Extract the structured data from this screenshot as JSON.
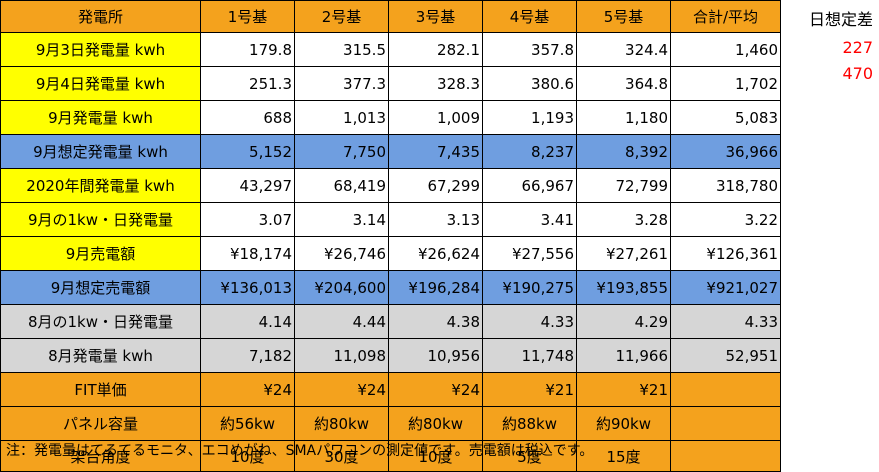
{
  "colors": {
    "orange": "#f4a21d",
    "yellow": "#ffff00",
    "blue": "#6f9ee0",
    "gray": "#d6d6d6",
    "white": "#ffffff",
    "red": "#ff0000"
  },
  "header": [
    "発電所",
    "1号基",
    "2号基",
    "3号基",
    "4号基",
    "5号基",
    "合計/平均"
  ],
  "rows": [
    {
      "label": "9月3日発電量 kwh",
      "bg": "yellow",
      "bodyBg": "white",
      "align": "num",
      "values": [
        "179.8",
        "315.5",
        "282.1",
        "357.8",
        "324.4",
        "1,460"
      ]
    },
    {
      "label": "9月4日発電量 kwh",
      "bg": "yellow",
      "bodyBg": "white",
      "align": "num",
      "values": [
        "251.3",
        "377.3",
        "328.3",
        "380.6",
        "364.8",
        "1,702"
      ]
    },
    {
      "label": "9月発電量 kwh",
      "bg": "yellow",
      "bodyBg": "white",
      "align": "num",
      "values": [
        "688",
        "1,013",
        "1,009",
        "1,193",
        "1,180",
        "5,083"
      ]
    },
    {
      "label": "9月想定発電量 kwh",
      "bg": "blue",
      "bodyBg": "blue",
      "align": "num",
      "values": [
        "5,152",
        "7,750",
        "7,435",
        "8,237",
        "8,392",
        "36,966"
      ]
    },
    {
      "label": "2020年間発電量 kwh",
      "bg": "yellow",
      "bodyBg": "white",
      "align": "num",
      "values": [
        "43,297",
        "68,419",
        "67,299",
        "66,967",
        "72,799",
        "318,780"
      ]
    },
    {
      "label": "9月の1kw・日発電量",
      "bg": "yellow",
      "bodyBg": "white",
      "align": "num",
      "values": [
        "3.07",
        "3.14",
        "3.13",
        "3.41",
        "3.28",
        "3.22"
      ]
    },
    {
      "label": "9月売電額",
      "bg": "yellow",
      "bodyBg": "white",
      "align": "num",
      "values": [
        "¥18,174",
        "¥26,746",
        "¥26,624",
        "¥27,556",
        "¥27,261",
        "¥126,361"
      ]
    },
    {
      "label": "9月想定売電額",
      "bg": "blue",
      "bodyBg": "blue",
      "align": "num",
      "values": [
        "¥136,013",
        "¥204,600",
        "¥196,284",
        "¥190,275",
        "¥193,855",
        "¥921,027"
      ]
    },
    {
      "label": "8月の1kw・日発電量",
      "bg": "gray",
      "bodyBg": "gray",
      "align": "num",
      "values": [
        "4.14",
        "4.44",
        "4.38",
        "4.33",
        "4.29",
        "4.33"
      ]
    },
    {
      "label": "8月発電量 kwh",
      "bg": "gray",
      "bodyBg": "gray",
      "align": "num",
      "values": [
        "7,182",
        "11,098",
        "10,956",
        "11,748",
        "11,966",
        "52,951"
      ]
    },
    {
      "label": "FIT単価",
      "bg": "orange",
      "bodyBg": "orange",
      "align": "num",
      "values": [
        "¥24",
        "¥24",
        "¥24",
        "¥21",
        "¥21",
        ""
      ]
    },
    {
      "label": "パネル容量",
      "bg": "orange",
      "bodyBg": "orange",
      "align": "center",
      "values": [
        "約56kw",
        "約80kw",
        "約80kw",
        "約88kw",
        "約90kw",
        ""
      ]
    },
    {
      "label": "架台角度",
      "bg": "orange",
      "bodyBg": "orange",
      "align": "center",
      "values": [
        "10度",
        "30度",
        "10度",
        "5度",
        "15度",
        ""
      ]
    }
  ],
  "side": {
    "title": "日想定差",
    "values": [
      "227",
      "470"
    ]
  },
  "note": "注：発電量はてるてるモニタ、エコめがね、SMAパワコンの測定値です。売電額は税込です。"
}
